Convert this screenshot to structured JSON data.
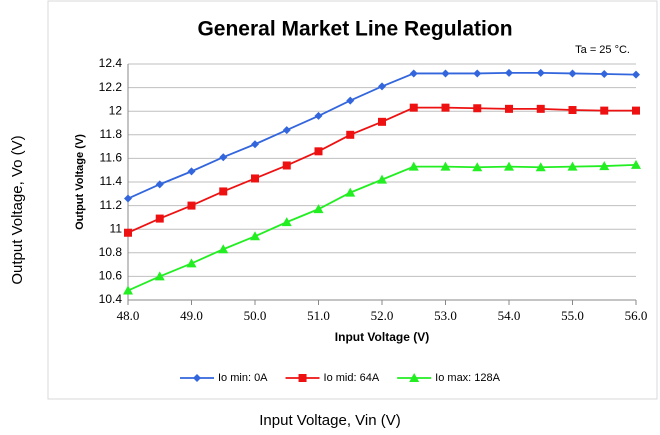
{
  "page": {
    "ylabel": "Output Voltage, Vo  (V)",
    "xlabel": "Input Voltage, Vin (V)"
  },
  "chart_data": {
    "type": "line",
    "title": "General Market Line Regulation",
    "annotation": "Ta = 25 °C.",
    "xlabel": "Input Voltage (V)",
    "ylabel": "Output Voltage (V)",
    "x": [
      48,
      48.5,
      49,
      49.5,
      50,
      50.5,
      51,
      51.5,
      52,
      52.5,
      53,
      53.5,
      54,
      54.5,
      55,
      55.5,
      56
    ],
    "series": [
      {
        "name": "Io min: 0A",
        "color": "#3366dd",
        "marker": "diamond",
        "values": [
          11.26,
          11.38,
          11.49,
          11.61,
          11.72,
          11.84,
          11.96,
          12.09,
          12.21,
          12.32,
          12.32,
          12.32,
          12.325,
          12.325,
          12.32,
          12.315,
          12.31
        ]
      },
      {
        "name": "Io mid: 64A",
        "color": "#ee1111",
        "marker": "square",
        "values": [
          10.97,
          11.09,
          11.2,
          11.32,
          11.43,
          11.54,
          11.66,
          11.8,
          11.91,
          12.03,
          12.03,
          12.025,
          12.02,
          12.02,
          12.01,
          12.005,
          12.005
        ]
      },
      {
        "name": "Io max: 128A",
        "color": "#22ee22",
        "marker": "triangle",
        "values": [
          10.48,
          10.6,
          10.71,
          10.83,
          10.94,
          11.06,
          11.17,
          11.31,
          11.42,
          11.53,
          11.53,
          11.525,
          11.53,
          11.525,
          11.53,
          11.535,
          11.545
        ]
      }
    ],
    "xlim": [
      48,
      56
    ],
    "xticks": [
      {
        "value": 48,
        "label": "48.0"
      },
      {
        "value": 49,
        "label": "49.0"
      },
      {
        "value": 50,
        "label": "50.0"
      },
      {
        "value": 51,
        "label": "51.0"
      },
      {
        "value": 52,
        "label": "52.0"
      },
      {
        "value": 53,
        "label": "53.0"
      },
      {
        "value": 54,
        "label": "54.0"
      },
      {
        "value": 55,
        "label": "55.0"
      },
      {
        "value": 56,
        "label": "56.0"
      }
    ],
    "ylim": [
      10.4,
      12.4
    ],
    "yticks": [
      10.4,
      10.6,
      10.8,
      11,
      11.2,
      11.4,
      11.6,
      11.8,
      12,
      12.2,
      12.4
    ],
    "grid": true,
    "legend": "bottom"
  }
}
